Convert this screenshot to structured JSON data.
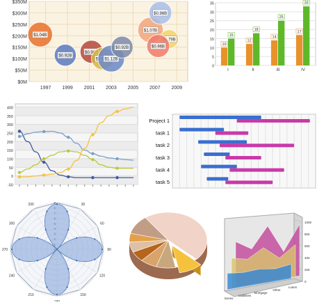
{
  "chart_data": [
    {
      "type": "scatter",
      "subtype": "bubble",
      "x_ticks": [
        "1997",
        "1999",
        "2001",
        "2003",
        "2005",
        "2007",
        "2009"
      ],
      "y_ticks": [
        "$0M",
        "$50M",
        "$100M",
        "$150M",
        "$200M",
        "$250M",
        "$300M",
        "$350M"
      ],
      "xlim": [
        1995.5,
        2010
      ],
      "ylim": [
        0,
        350
      ],
      "grid": true,
      "points": [
        {
          "x": 1996.5,
          "y": 205,
          "r": 1.04,
          "label": "$1.04B",
          "color": "#e8702a"
        },
        {
          "x": 1998.8,
          "y": 115,
          "r": 0.92,
          "label": "$0.92B",
          "color": "#5b79c1"
        },
        {
          "x": 2001.2,
          "y": 130,
          "r": 0.96,
          "label": "$0.96B",
          "color": "#b5473a"
        },
        {
          "x": 2002.2,
          "y": 100,
          "r": 0.93,
          "label": "$0.93B",
          "color": "#d8b53e"
        },
        {
          "x": 2003.0,
          "y": 100,
          "r": 1.12,
          "label": "$1.12B",
          "color": "#6b87c9"
        },
        {
          "x": 2004.0,
          "y": 150,
          "r": 0.92,
          "label": "$0.92B",
          "color": "#7b8aa8"
        },
        {
          "x": 2006.6,
          "y": 225,
          "r": 1.07,
          "label": "$1.07B",
          "color": "#f3a57a"
        },
        {
          "x": 2007.5,
          "y": 300,
          "r": 0.96,
          "label": "$0.96B",
          "color": "#a9bde8"
        },
        {
          "x": 2008.3,
          "y": 185,
          "r": 0.79,
          "label": "$0.79B",
          "color": "#f3d16a"
        },
        {
          "x": 2007.3,
          "y": 155,
          "r": 0.96,
          "label": "$0.96B",
          "color": "#f07a6a"
        }
      ]
    },
    {
      "type": "bar",
      "categories": [
        "I",
        "II",
        "III",
        "IV"
      ],
      "ylim": [
        0,
        35
      ],
      "y_ticks": [
        "0",
        "5",
        "10",
        "15",
        "20",
        "25",
        "30",
        "35"
      ],
      "series": [
        {
          "values": [
            10,
            12,
            14,
            17
          ],
          "color": "#e8922a"
        },
        {
          "values": [
            15,
            18,
            25,
            33
          ],
          "color": "#5fb82a"
        }
      ],
      "data_labels": [
        [
          "10",
          "12",
          "14",
          "17"
        ],
        [
          "15",
          "18",
          "25",
          "33"
        ]
      ]
    },
    {
      "type": "line",
      "y_ticks": [
        "-50",
        "0",
        "50",
        "100",
        "150",
        "200",
        "250",
        "300",
        "350",
        "400"
      ],
      "ylim": [
        -50,
        420
      ],
      "x": [
        0,
        1,
        2,
        3,
        4,
        5,
        6,
        7,
        8,
        9,
        10,
        11,
        12,
        13,
        14
      ],
      "series": [
        {
          "color": "#3f5a9e",
          "values": [
            260,
            200,
            140,
            80,
            30,
            5,
            -5,
            -10,
            -10,
            -10,
            -10,
            -10,
            -10,
            -10,
            -10
          ]
        },
        {
          "color": "#7aa0c8",
          "values": [
            230,
            245,
            255,
            258,
            260,
            250,
            225,
            190,
            150,
            130,
            115,
            105,
            100,
            95,
            92
          ]
        },
        {
          "color": "#b8c93c",
          "values": [
            20,
            40,
            65,
            100,
            120,
            140,
            145,
            140,
            120,
            95,
            65,
            50,
            45,
            45,
            45
          ]
        },
        {
          "color": "#f5c23d",
          "values": [
            -5,
            -5,
            0,
            5,
            10,
            20,
            40,
            90,
            160,
            240,
            310,
            350,
            375,
            390,
            400
          ]
        }
      ]
    },
    {
      "type": "gantt",
      "categories": [
        "Project 1",
        "task 1",
        "task 2",
        "task 3",
        "task 4",
        "task 5"
      ],
      "bars": [
        {
          "row": 0,
          "start": 0.05,
          "end": 0.62,
          "color": "#3a6fd0"
        },
        {
          "row": 0,
          "start": 0.45,
          "end": 0.96,
          "color": "#c83aa8"
        },
        {
          "row": 1,
          "start": 0.05,
          "end": 0.36,
          "color": "#3a6fd0"
        },
        {
          "row": 1,
          "start": 0.3,
          "end": 0.53,
          "color": "#c83aa8"
        },
        {
          "row": 2,
          "start": 0.18,
          "end": 0.52,
          "color": "#3a6fd0"
        },
        {
          "row": 2,
          "start": 0.33,
          "end": 0.85,
          "color": "#c83aa8"
        },
        {
          "row": 3,
          "start": 0.22,
          "end": 0.4,
          "color": "#3a6fd0"
        },
        {
          "row": 3,
          "start": 0.37,
          "end": 0.62,
          "color": "#c83aa8"
        },
        {
          "row": 4,
          "start": 0.2,
          "end": 0.45,
          "color": "#3a6fd0"
        },
        {
          "row": 4,
          "start": 0.4,
          "end": 0.78,
          "color": "#c83aa8"
        },
        {
          "row": 5,
          "start": 0.24,
          "end": 0.39,
          "color": "#3a6fd0"
        },
        {
          "row": 5,
          "start": 0.37,
          "end": 0.7,
          "color": "#c83aa8"
        }
      ]
    },
    {
      "type": "polar",
      "r_ticks": [
        "0",
        "1",
        "2",
        "3",
        "4",
        "5",
        "6",
        "7",
        "8",
        "9"
      ],
      "angle_ticks": [
        "0",
        "30",
        "60",
        "90",
        "120",
        "150",
        "180",
        "210",
        "240",
        "270",
        "300",
        "330"
      ],
      "series_color": "#7fa1d8",
      "petals": 4,
      "rmax": 9
    },
    {
      "type": "pie",
      "style": "3d",
      "slices": [
        {
          "value": 47,
          "color": "#f1d3c7"
        },
        {
          "value": 10,
          "color": "#f5c23d",
          "exploded": true
        },
        {
          "value": 8,
          "color": "#c9a77d"
        },
        {
          "value": 7,
          "color": "#d9a36a"
        },
        {
          "value": 6,
          "color": "#b5651d"
        },
        {
          "value": 6,
          "color": "#dfc0a5"
        },
        {
          "value": 5,
          "color": "#e3a04a"
        },
        {
          "value": 11,
          "color": "#c29d86"
        }
      ]
    },
    {
      "type": "area",
      "style": "3d",
      "z_ticks": [
        "0",
        "200",
        "400",
        "600",
        "800",
        "1000"
      ],
      "x_ticks": [
        "Series",
        "Liabilities",
        "Mortgage",
        "Other",
        "Loans"
      ],
      "series": [
        {
          "color": "#2f86d6",
          "values": [
            260,
            230,
            240,
            200,
            230
          ]
        },
        {
          "color": "#d8c46a",
          "values": [
            480,
            420,
            560,
            350,
            520
          ]
        },
        {
          "color": "#c2459a",
          "values": [
            720,
            560,
            880,
            430,
            820
          ]
        }
      ]
    }
  ]
}
